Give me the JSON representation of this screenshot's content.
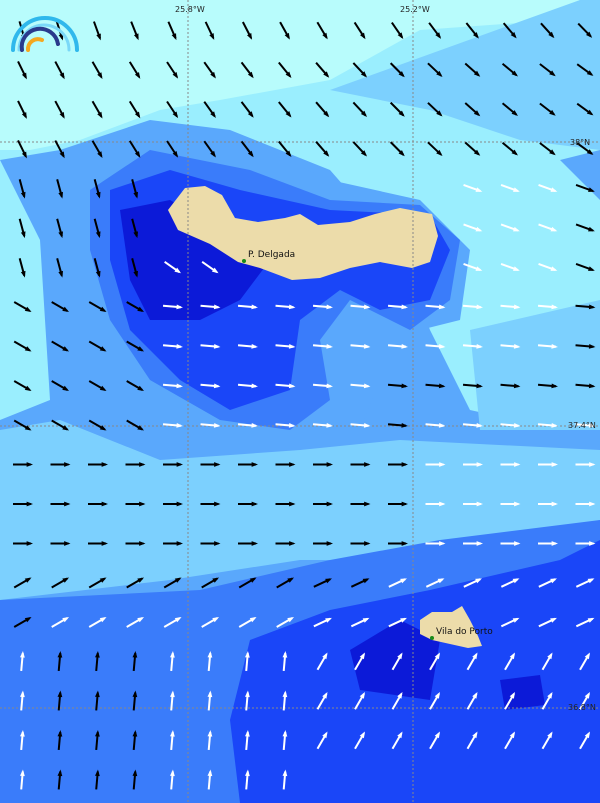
{
  "map": {
    "longitude_labels": [
      "25.8°W",
      "25.2°W"
    ],
    "latitude_labels": [
      "38°N",
      "37.4°N",
      "36.8°N"
    ],
    "places": [
      {
        "name": "P. Delgada"
      },
      {
        "name": "Vila do Porto"
      }
    ],
    "logo": "wave-arcs-logo",
    "colors": {
      "land": "#ecdcaa",
      "level1": "#b8fcfc",
      "level2": "#9aeefe",
      "level3": "#7cd0fe",
      "level4": "#5aa8fc",
      "level5": "#3a7cfa",
      "level6": "#1a46f8",
      "level7": "#0c1ad8",
      "arrow_dark": "#000000",
      "arrow_light": "#ffffff",
      "grid": "#888888"
    }
  }
}
